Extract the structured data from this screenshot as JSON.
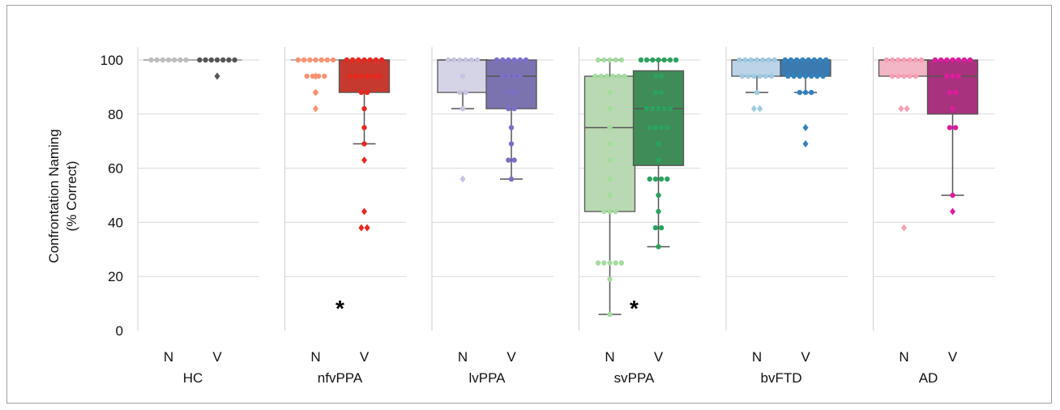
{
  "chart_data": {
    "type": "box-swarm",
    "ylabel": "Confrontation Naming",
    "ylabel_sub": "(% Correct)",
    "ylim": [
      0,
      105
    ],
    "yticks": [
      0,
      20,
      40,
      60,
      80,
      100
    ],
    "grid": true,
    "group_order": [
      "N",
      "V"
    ],
    "panels": [
      {
        "name": "HC",
        "significance": "",
        "colors": {
          "N": "#c9c9c9",
          "V": "#6a6a6a",
          "N_point": "#bdbdbd",
          "V_point": "#555555"
        },
        "N": {
          "box": {
            "q1": 100,
            "median": 100,
            "q3": 100,
            "whisker_low": 100,
            "whisker_high": 100
          },
          "points": [
            100,
            100,
            100,
            100,
            100,
            100,
            100
          ],
          "outliers": []
        },
        "V": {
          "box": {
            "q1": 100,
            "median": 100,
            "q3": 100,
            "whisker_low": 100,
            "whisker_high": 100
          },
          "points": [
            100,
            100,
            100,
            100,
            100,
            100,
            100
          ],
          "outliers": [
            94
          ]
        }
      },
      {
        "name": "nfvPPA",
        "significance": "*",
        "colors": {
          "N": "#fdbba0",
          "V": "#c6392e",
          "N_point": "#fc9272",
          "V_point": "#e8281f"
        },
        "N": {
          "box": {
            "q1": 100,
            "median": 100,
            "q3": 100,
            "whisker_low": 100,
            "whisker_high": 100
          },
          "points": [
            100,
            100,
            100,
            100,
            100,
            100,
            100,
            94,
            94,
            94,
            94,
            88
          ],
          "outliers": [
            94,
            88,
            82
          ]
        },
        "V": {
          "box": {
            "q1": 88,
            "median": 100,
            "q3": 100,
            "whisker_low": 69,
            "whisker_high": 100
          },
          "points": [
            100,
            100,
            100,
            100,
            100,
            100,
            100,
            94,
            94,
            94,
            94,
            94,
            94,
            88,
            88,
            82,
            75,
            69
          ],
          "outliers": [
            63,
            44,
            38,
            38
          ]
        }
      },
      {
        "name": "lvPPA",
        "significance": "",
        "colors": {
          "N": "#d4d4e6",
          "V": "#7b73b0",
          "N_point": "#c7c4e2",
          "V_point": "#7b6fc9"
        },
        "N": {
          "box": {
            "q1": 88,
            "median": 100,
            "q3": 100,
            "whisker_low": 82,
            "whisker_high": 100
          },
          "points": [
            100,
            100,
            100,
            100,
            100,
            100,
            94,
            88,
            88,
            82
          ],
          "outliers": [
            56
          ]
        },
        "V": {
          "box": {
            "q1": 82,
            "median": 94,
            "q3": 100,
            "whisker_low": 56,
            "whisker_high": 100
          },
          "points": [
            100,
            100,
            100,
            100,
            100,
            100,
            94,
            94,
            94,
            94,
            88,
            88,
            82,
            82,
            75,
            69,
            63,
            63,
            56
          ],
          "outliers": []
        }
      },
      {
        "name": "svPPA",
        "significance": "*",
        "colors": {
          "N": "#b9d9b3",
          "V": "#3f8c57",
          "N_point": "#a6dba0",
          "V_point": "#2ca25f"
        },
        "N": {
          "box": {
            "q1": 44,
            "median": 75,
            "q3": 94,
            "whisker_low": 6,
            "whisker_high": 100
          },
          "points": [
            100,
            100,
            100,
            100,
            100,
            94,
            94,
            94,
            94,
            94,
            94,
            88,
            82,
            75,
            69,
            63,
            56,
            50,
            44,
            44,
            44,
            25,
            25,
            25,
            25,
            25,
            19,
            6
          ],
          "outliers": []
        },
        "V": {
          "box": {
            "q1": 61,
            "median": 82,
            "q3": 96,
            "whisker_low": 31,
            "whisker_high": 100
          },
          "points": [
            100,
            100,
            100,
            100,
            100,
            100,
            100,
            94,
            94,
            88,
            88,
            82,
            82,
            82,
            82,
            82,
            75,
            75,
            75,
            75,
            69,
            63,
            56,
            56,
            56,
            56,
            50,
            44,
            38,
            38,
            31
          ],
          "outliers": []
        }
      },
      {
        "name": "bvFTD",
        "significance": "",
        "colors": {
          "N": "#bcd4e8",
          "V": "#3a7ab0",
          "N_point": "#9ecae1",
          "V_point": "#3182bd"
        },
        "N": {
          "box": {
            "q1": 94,
            "median": 100,
            "q3": 100,
            "whisker_low": 88,
            "whisker_high": 100
          },
          "points": [
            100,
            100,
            100,
            100,
            100,
            100,
            100,
            94,
            94,
            94,
            94,
            94,
            94,
            88
          ],
          "outliers": [
            82,
            82
          ]
        },
        "V": {
          "box": {
            "q1": 94,
            "median": 100,
            "q3": 100,
            "whisker_low": 88,
            "whisker_high": 100
          },
          "points": [
            100,
            100,
            100,
            100,
            100,
            100,
            100,
            100,
            94,
            94,
            94,
            94,
            94,
            94,
            94,
            88,
            88,
            88
          ],
          "outliers": [
            75,
            69
          ]
        }
      },
      {
        "name": "AD",
        "significance": "",
        "colors": {
          "N": "#f3b6c6",
          "V": "#a8327d",
          "N_point": "#fa9fb5",
          "V_point": "#dd1c9f"
        },
        "N": {
          "box": {
            "q1": 94,
            "median": 100,
            "q3": 100,
            "whisker_low": 94,
            "whisker_high": 100
          },
          "points": [
            100,
            100,
            100,
            100,
            100,
            100,
            100,
            94,
            94,
            94,
            94,
            94
          ],
          "outliers": [
            82,
            82,
            38
          ]
        },
        "V": {
          "box": {
            "q1": 80,
            "median": 94,
            "q3": 100,
            "whisker_low": 50,
            "whisker_high": 100
          },
          "points": [
            100,
            100,
            100,
            100,
            100,
            100,
            100,
            94,
            94,
            94,
            88,
            88,
            82,
            75,
            75,
            50
          ],
          "outliers": [
            44
          ]
        }
      }
    ]
  }
}
